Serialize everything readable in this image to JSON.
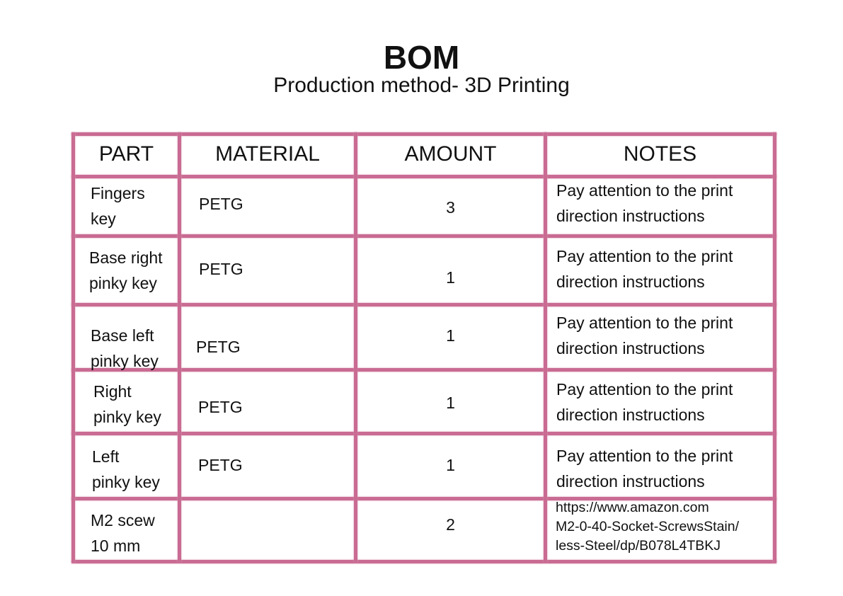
{
  "title": "BOM",
  "subtitle": "Production method- 3D Printing",
  "table": {
    "headers": [
      "PART",
      "MATERIAL",
      "AMOUNT",
      "NOTES"
    ],
    "rows": [
      {
        "part": [
          "Fingers",
          "key"
        ],
        "material": "PETG",
        "amount": "3",
        "notes": [
          "Pay attention to the print",
          "direction instructions"
        ]
      },
      {
        "part": [
          "Base right",
          "pinky key"
        ],
        "material": "PETG",
        "amount": "1",
        "notes": [
          "Pay attention to the print",
          "direction instructions"
        ]
      },
      {
        "part": [
          "Base left",
          "pinky key"
        ],
        "material": "PETG",
        "amount": "1",
        "notes": [
          "Pay attention to the print",
          "direction instructions"
        ]
      },
      {
        "part": [
          "Right",
          "pinky key"
        ],
        "material": "PETG",
        "amount": "1",
        "notes": [
          "Pay attention to the print",
          "direction instructions"
        ]
      },
      {
        "part": [
          "Left",
          "pinky key"
        ],
        "material": "PETG",
        "amount": "1",
        "notes": [
          "Pay attention to the print",
          "direction instructions"
        ]
      },
      {
        "part": [
          "M2 scew",
          "10 mm"
        ],
        "material": "",
        "amount": "2",
        "notes": [
          "https://www.amazon.com",
          "M2-0-40-Socket-ScrewsStain/",
          "less-Steel/dp/B078L4TBKJ"
        ]
      }
    ]
  },
  "colors": {
    "border": "#c96b92"
  }
}
